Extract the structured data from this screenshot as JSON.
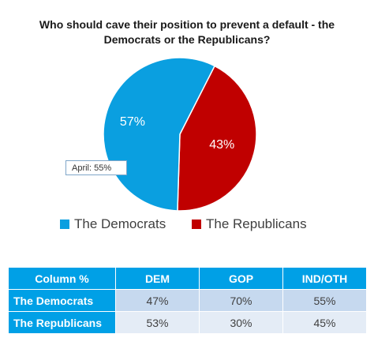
{
  "chart_data": {
    "type": "pie",
    "title_lines": [
      "Who should cave their position to prevent a default - the",
      "Democrats or the Republicans?"
    ],
    "slices": [
      {
        "label": "The Democrats",
        "value": 57,
        "display": "57%",
        "color": "#0a9fe0"
      },
      {
        "label": "The Republicans",
        "value": 43,
        "display": "43%",
        "color": "#c00000"
      }
    ],
    "callout": "April: 55%",
    "legend": [
      "The Democrats",
      "The Republicans"
    ]
  },
  "table": {
    "corner": "Column %",
    "columns": [
      "DEM",
      "GOP",
      "IND/OTH"
    ],
    "rows": [
      {
        "label": "The Democrats",
        "values": [
          "47%",
          "70%",
          "55%"
        ]
      },
      {
        "label": "The Republicans",
        "values": [
          "53%",
          "30%",
          "45%"
        ]
      }
    ]
  }
}
